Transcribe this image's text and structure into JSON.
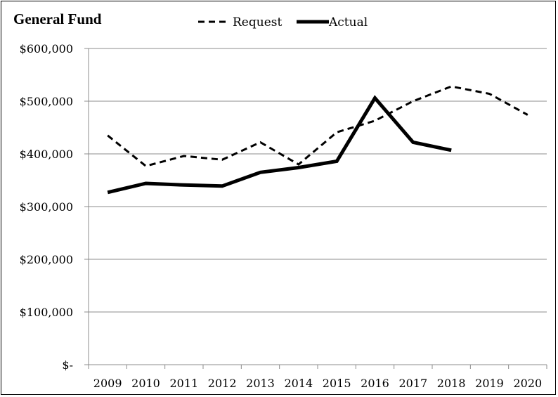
{
  "chart_data": {
    "type": "line",
    "title": "General Fund",
    "categories": [
      "2009",
      "2010",
      "2011",
      "2012",
      "2013",
      "2014",
      "2015",
      "2016",
      "2017",
      "2018",
      "2019",
      "2020"
    ],
    "series": [
      {
        "name": "Request",
        "style": "dashed",
        "values": [
          435000,
          377000,
          396000,
          389000,
          422000,
          380000,
          441000,
          463000,
          500000,
          528000,
          514000,
          474000
        ]
      },
      {
        "name": "Actual",
        "style": "solid",
        "values": [
          327000,
          344000,
          341000,
          339000,
          365000,
          374000,
          386000,
          506000,
          422000,
          407000,
          null,
          null
        ]
      }
    ],
    "ylim": [
      0,
      600000
    ],
    "yticks": [
      {
        "value": 600000,
        "label": "$600,000"
      },
      {
        "value": 500000,
        "label": "$500,000"
      },
      {
        "value": 400000,
        "label": "$400,000"
      },
      {
        "value": 300000,
        "label": "$300,000"
      },
      {
        "value": 200000,
        "label": "$200,000"
      },
      {
        "value": 100000,
        "label": "$100,000"
      },
      {
        "value": 0,
        "label": "$-"
      }
    ],
    "grid": true,
    "legend": "top",
    "colors": {
      "line": "#000000",
      "grid": "#8c8c8c"
    }
  }
}
